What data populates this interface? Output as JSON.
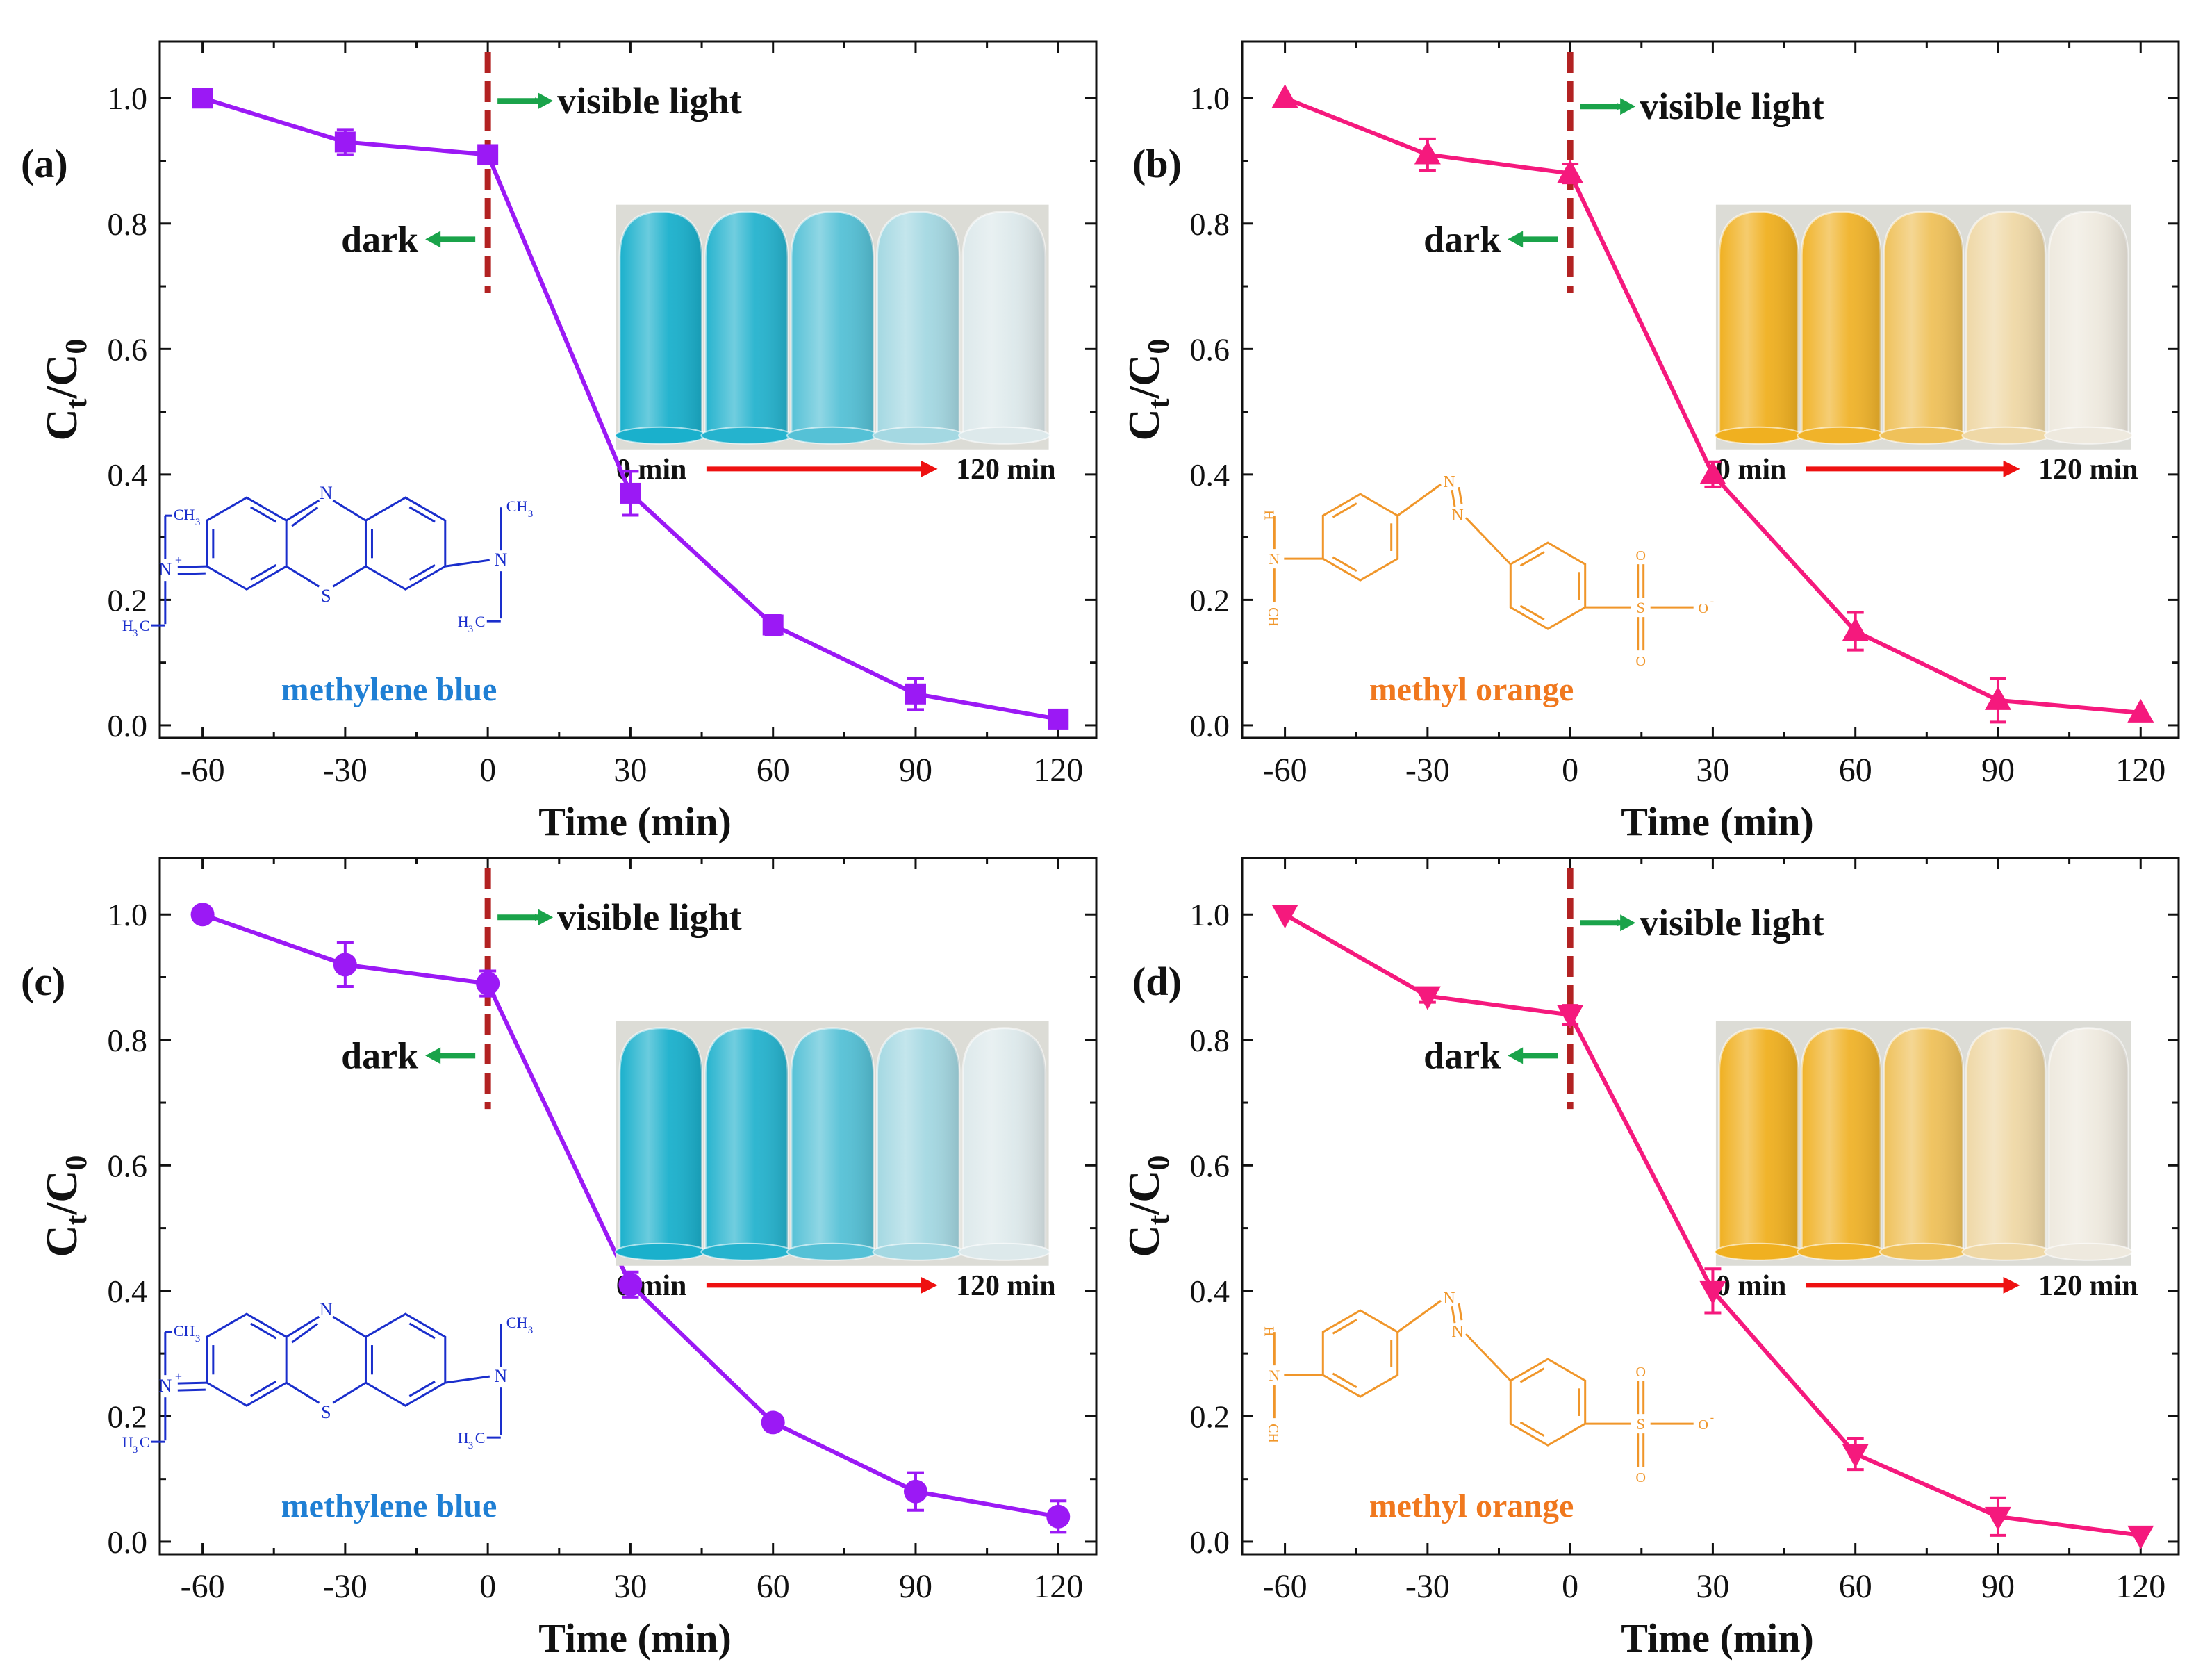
{
  "figure": {
    "x_axis_label": "Time (min)",
    "y_axis_label_main": "C",
    "y_axis_label_sub_t": "t",
    "y_axis_label_slash": "/C",
    "y_axis_label_sub_0": "0",
    "x_ticks": [
      "-60",
      "-30",
      "0",
      "30",
      "60",
      "90",
      "120"
    ],
    "y_ticks": [
      "0.0",
      "0.2",
      "0.4",
      "0.6",
      "0.8",
      "1.0"
    ],
    "visible_label": "visible light",
    "dark_label": "dark",
    "inset_start": "0 min",
    "inset_end": "120 min"
  },
  "colors": {
    "purple": "#9b19f5",
    "pink": "#f5197d",
    "dashed": "#b22222",
    "green_arrow": "#1aa34a",
    "red_arrow": "#ee1111",
    "mb_structure": "#1a2ecc",
    "mb_label": "#1f7fd4",
    "mo_structure": "#f0962a",
    "mo_label": "#f0781e",
    "vial_blue": "#1ab0cc",
    "vial_orange": "#f0b020"
  },
  "chart_data": [
    {
      "panel": "(a)",
      "type": "line",
      "marker": "square",
      "color_key": "purple",
      "dye": "methylene blue",
      "inset": "blue",
      "x": [
        -60,
        -30,
        0,
        30,
        60,
        90,
        120
      ],
      "y": [
        1.0,
        0.93,
        0.91,
        0.37,
        0.16,
        0.05,
        0.01
      ],
      "err": [
        0.0,
        0.02,
        0.01,
        0.035,
        0.015,
        0.025,
        0.0
      ],
      "xlim": [
        -69,
        128
      ],
      "ylim": [
        -0.02,
        1.09
      ],
      "xlabel": "Time (min)",
      "ylabel": "Ct/C0"
    },
    {
      "panel": "(b)",
      "type": "line",
      "marker": "triangle-up",
      "color_key": "pink",
      "dye": "methyl orange",
      "inset": "orange",
      "x": [
        -60,
        -30,
        0,
        30,
        60,
        90,
        120
      ],
      "y": [
        1.0,
        0.91,
        0.88,
        0.4,
        0.15,
        0.04,
        0.02
      ],
      "err": [
        0.0,
        0.025,
        0.015,
        0.02,
        0.03,
        0.035,
        0.0
      ],
      "xlim": [
        -69,
        128
      ],
      "ylim": [
        -0.02,
        1.09
      ],
      "xlabel": "Time (min)",
      "ylabel": "Ct/C0"
    },
    {
      "panel": "(c)",
      "type": "line",
      "marker": "circle",
      "color_key": "purple",
      "dye": "methylene blue",
      "inset": "blue",
      "x": [
        -60,
        -30,
        0,
        30,
        60,
        90,
        120
      ],
      "y": [
        1.0,
        0.92,
        0.89,
        0.41,
        0.19,
        0.08,
        0.04
      ],
      "err": [
        0.0,
        0.035,
        0.02,
        0.02,
        0.01,
        0.03,
        0.025
      ],
      "xlim": [
        -69,
        128
      ],
      "ylim": [
        -0.02,
        1.09
      ],
      "xlabel": "Time (min)",
      "ylabel": "Ct/C0"
    },
    {
      "panel": "(d)",
      "type": "line",
      "marker": "triangle-down",
      "color_key": "pink",
      "dye": "methyl orange",
      "inset": "orange",
      "x": [
        -60,
        -30,
        0,
        30,
        60,
        90,
        120
      ],
      "y": [
        1.0,
        0.87,
        0.84,
        0.4,
        0.14,
        0.04,
        0.01
      ],
      "err": [
        0.0,
        0.01,
        0.015,
        0.035,
        0.025,
        0.03,
        0.0
      ],
      "xlim": [
        -69,
        128
      ],
      "ylim": [
        -0.02,
        1.09
      ],
      "xlabel": "Time (min)",
      "ylabel": "Ct/C0"
    }
  ],
  "structures": {
    "mb": {
      "n_ring": "N",
      "s_ring": "S",
      "ch3": "CH",
      "sub3": "3",
      "h3c": "H",
      "c": "C",
      "n_plus": "N",
      "plus": "+",
      "n": "N"
    },
    "mo": {
      "n_azo": "N",
      "h3c": "H",
      "c": "C",
      "n": "N",
      "ch3": "CH",
      "sub3": "3",
      "s": "S",
      "o": "O",
      "o_minus": "O",
      "minus": "-"
    }
  }
}
